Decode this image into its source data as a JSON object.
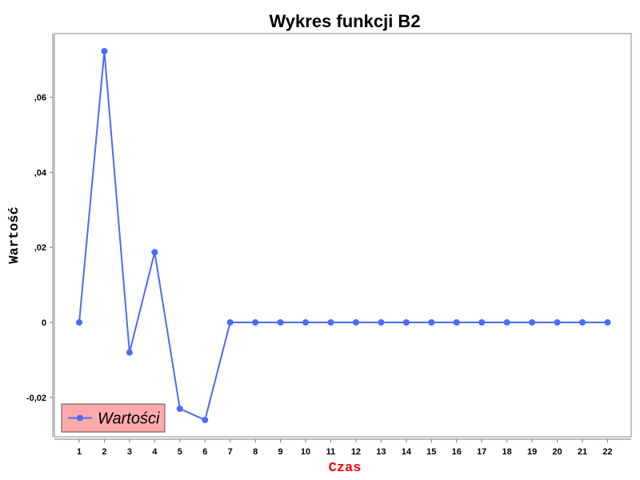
{
  "chart_data": {
    "type": "line",
    "title": "Wykres funkcji B2",
    "xlabel": "Czas",
    "ylabel": "Wartość",
    "categories": [
      "1",
      "2",
      "3",
      "4",
      "5",
      "6",
      "7",
      "8",
      "9",
      "10",
      "11",
      "12",
      "13",
      "14",
      "15",
      "16",
      "17",
      "18",
      "19",
      "20",
      "21",
      "22"
    ],
    "series": [
      {
        "name": "Wartości",
        "color": "#4a6cf7",
        "values": [
          0,
          0.0723,
          -0.008,
          0.0187,
          -0.023,
          -0.026,
          0,
          0,
          0,
          0,
          0,
          0,
          0,
          0,
          0,
          0,
          0,
          0,
          0,
          0,
          0,
          0
        ]
      }
    ],
    "ylim": [
      -0.03,
      0.077
    ],
    "yticks": [
      -0.02,
      0,
      0.02,
      0.04,
      0.06
    ],
    "ytick_labels": [
      "-0,02",
      "0",
      ",02",
      ",04",
      ",06"
    ],
    "grid": true,
    "legend": {
      "position": "bottom-left",
      "background": "#ffaaaa"
    }
  }
}
